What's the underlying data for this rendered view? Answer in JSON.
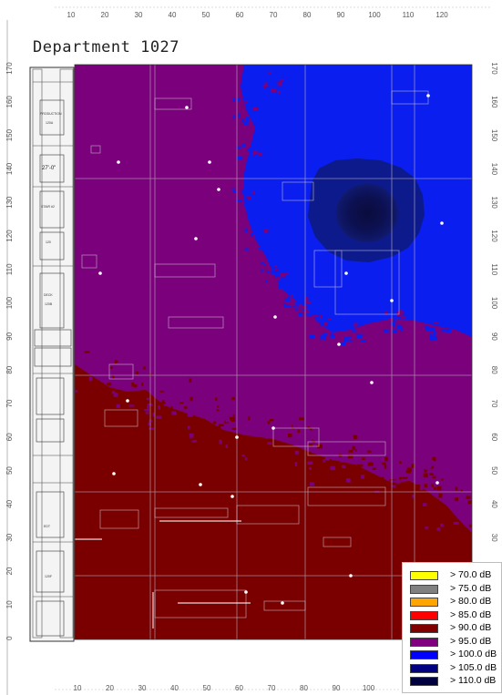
{
  "title": "Department 1027",
  "x_ticks": [
    "10",
    "20",
    "30",
    "40",
    "50",
    "60",
    "70",
    "80",
    "90",
    "100",
    "110",
    "120"
  ],
  "x_ticks_bottom": [
    "10",
    "20",
    "30",
    "40",
    "50",
    "60",
    "70",
    "80",
    "90",
    "100"
  ],
  "y_ticks": [
    "170",
    "160",
    "150",
    "140",
    "130",
    "120",
    "110",
    "100",
    "90",
    "80",
    "70",
    "60",
    "50",
    "40",
    "30",
    "20",
    "10",
    "0"
  ],
  "y_ticks_right": [
    "170",
    "160",
    "150",
    "140",
    "130",
    "120",
    "110",
    "100",
    "90",
    "80",
    "70",
    "60",
    "50",
    "40",
    "30"
  ],
  "legend": [
    {
      "label": "> 70.0 dB",
      "color": "#ffff00"
    },
    {
      "label": "> 75.0 dB",
      "color": "#808080"
    },
    {
      "label": "> 80.0 dB",
      "color": "#ffa500"
    },
    {
      "label": "> 85.0 dB",
      "color": "#ff0000"
    },
    {
      "label": "> 90.0 dB",
      "color": "#800000"
    },
    {
      "label": "> 95.0 dB",
      "color": "#800080"
    },
    {
      "label": "> 100.0 dB",
      "color": "#0000ff"
    },
    {
      "label": "> 105.0 dB",
      "color": "#000080"
    },
    {
      "label": "> 110.0 dB",
      "color": "#000040"
    }
  ],
  "plan_labels": [
    "PRODUCTION",
    "120A",
    "STAIR #2",
    "DECK",
    "120B",
    "120F",
    "27'-0\"",
    "120",
    "EDT"
  ],
  "colors": {
    "zone_90": "#7a0000",
    "zone_95": "#7b007b",
    "zone_100": "#0a1ef0",
    "zone_105": "#0d1a8c",
    "zone_110": "#0a0f4a",
    "grid_line": "#b0a6b8",
    "wall": "#222222"
  }
}
